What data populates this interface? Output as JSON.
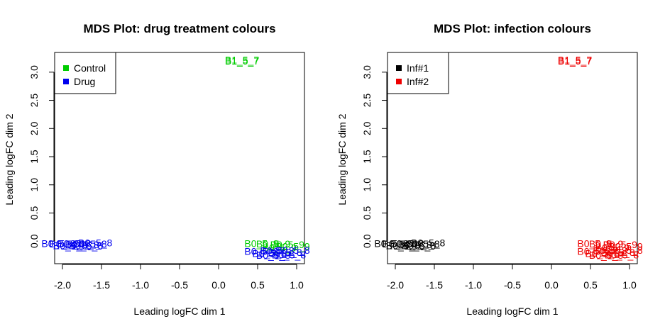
{
  "chart_data": [
    {
      "type": "scatter",
      "title": "MDS Plot: drug treatment colours",
      "xlabel": "Leading logFC dim 1",
      "ylabel": "Leading logFC dim 2",
      "xlim": [
        -2.1,
        1.1
      ],
      "ylim": [
        -0.4,
        3.35
      ],
      "x_ticks": [
        "-2.0",
        "-1.5",
        "-1.0",
        "-0.5",
        "0.0",
        "0.5",
        "1.0"
      ],
      "y_ticks": [
        "0.0",
        "0.5",
        "1.0",
        "1.5",
        "2.0",
        "2.5",
        "3.0"
      ],
      "grid": false,
      "legend_position": "top-left",
      "series": [
        {
          "name": "Control",
          "color": "#00cc00",
          "points": [
            {
              "x": 0.3,
              "y": 3.22,
              "label": "B1_5_7"
            },
            {
              "x": 0.3,
              "y": 3.2,
              "label": "B1_5_7"
            },
            {
              "x": 0.55,
              "y": -0.04,
              "label": "B0_5_9"
            },
            {
              "x": 0.7,
              "y": -0.05,
              "label": "B0_5_9"
            },
            {
              "x": 0.88,
              "y": -0.06,
              "label": "B0_5_9"
            },
            {
              "x": 0.78,
              "y": -0.12,
              "label": "B0_5_9"
            },
            {
              "x": 0.95,
              "y": -0.09,
              "label": "B0_5_9"
            }
          ]
        },
        {
          "name": "Drug",
          "color": "#0000ee",
          "points": [
            {
              "x": -2.05,
              "y": -0.04,
              "label": "B0_5_8"
            },
            {
              "x": -1.95,
              "y": -0.05,
              "label": "B0_5_8"
            },
            {
              "x": -1.85,
              "y": -0.04,
              "label": "B0_5_8"
            },
            {
              "x": -1.75,
              "y": -0.06,
              "label": "B0_5_8"
            },
            {
              "x": -1.65,
              "y": -0.05,
              "label": "B0_5_8"
            },
            {
              "x": -1.58,
              "y": -0.03,
              "label": "B0_5_8"
            },
            {
              "x": -1.9,
              "y": -0.08,
              "label": "B0_5_8"
            },
            {
              "x": -1.7,
              "y": -0.08,
              "label": "B0_5_8"
            },
            {
              "x": 0.55,
              "y": -0.18,
              "label": "B0_5_8"
            },
            {
              "x": 0.65,
              "y": -0.22,
              "label": "B0_5_8"
            },
            {
              "x": 0.75,
              "y": -0.17,
              "label": "B0_5_8"
            },
            {
              "x": 0.85,
              "y": -0.2,
              "label": "B0_5_8"
            },
            {
              "x": 0.95,
              "y": -0.16,
              "label": "B0_5_8"
            },
            {
              "x": 0.7,
              "y": -0.25,
              "label": "B0_5_8"
            },
            {
              "x": 0.9,
              "y": -0.24,
              "label": "B0_5_8"
            }
          ]
        }
      ]
    },
    {
      "type": "scatter",
      "title": "MDS Plot: infection colours",
      "xlabel": "Leading logFC dim 1",
      "ylabel": "Leading logFC dim 2",
      "xlim": [
        -2.1,
        1.1
      ],
      "ylim": [
        -0.4,
        3.35
      ],
      "x_ticks": [
        "-2.0",
        "-1.5",
        "-1.0",
        "-0.5",
        "0.0",
        "0.5",
        "1.0"
      ],
      "y_ticks": [
        "0.0",
        "0.5",
        "1.0",
        "1.5",
        "2.0",
        "2.5",
        "3.0"
      ],
      "grid": false,
      "legend_position": "top-left",
      "series": [
        {
          "name": "Inf#1",
          "color": "#000000",
          "points": [
            {
              "x": -2.05,
              "y": -0.04,
              "label": "B0_5_8"
            },
            {
              "x": -1.95,
              "y": -0.05,
              "label": "B0_5_8"
            },
            {
              "x": -1.85,
              "y": -0.04,
              "label": "B0_5_8"
            },
            {
              "x": -1.75,
              "y": -0.06,
              "label": "B0_5_8"
            },
            {
              "x": -1.65,
              "y": -0.05,
              "label": "B0_5_8"
            },
            {
              "x": -1.58,
              "y": -0.03,
              "label": "B0_5_8"
            },
            {
              "x": -1.9,
              "y": -0.08,
              "label": "B0_5_8"
            },
            {
              "x": -1.7,
              "y": -0.08,
              "label": "B0_5_8"
            }
          ]
        },
        {
          "name": "Inf#2",
          "color": "#ee0000",
          "points": [
            {
              "x": 0.3,
              "y": 3.22,
              "label": "B1_5_7"
            },
            {
              "x": 0.3,
              "y": 3.2,
              "label": "B1_5_7"
            },
            {
              "x": 0.55,
              "y": -0.04,
              "label": "B0_5_9"
            },
            {
              "x": 0.7,
              "y": -0.05,
              "label": "B0_5_9"
            },
            {
              "x": 0.88,
              "y": -0.06,
              "label": "B0_5_9"
            },
            {
              "x": 0.78,
              "y": -0.12,
              "label": "B0_5_9"
            },
            {
              "x": 0.95,
              "y": -0.09,
              "label": "B0_5_9"
            },
            {
              "x": 0.55,
              "y": -0.18,
              "label": "B0_5_8"
            },
            {
              "x": 0.65,
              "y": -0.22,
              "label": "B0_5_8"
            },
            {
              "x": 0.75,
              "y": -0.17,
              "label": "B0_5_8"
            },
            {
              "x": 0.85,
              "y": -0.2,
              "label": "B0_5_8"
            },
            {
              "x": 0.95,
              "y": -0.16,
              "label": "B0_5_8"
            },
            {
              "x": 0.7,
              "y": -0.25,
              "label": "B0_5_8"
            },
            {
              "x": 0.9,
              "y": -0.24,
              "label": "B0_5_8"
            }
          ]
        }
      ]
    }
  ]
}
